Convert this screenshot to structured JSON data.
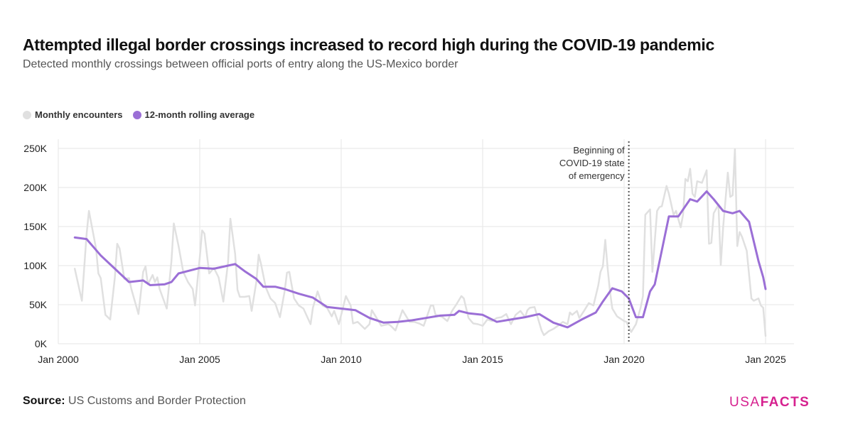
{
  "title": "Attempted illegal border crossings increased to record high during the COVID-19 pandemic",
  "subtitle": "Detected monthly crossings between official ports of entry along the US-Mexico border",
  "source_label": "Source:",
  "source_text": "US Customs and Border Protection",
  "logo": {
    "usa": "USA",
    "facts": "FACTS",
    "color": "#d6218f"
  },
  "chart_data": {
    "type": "line",
    "title": "",
    "xlabel": "",
    "ylabel": "",
    "x_ticks": [
      "Jan 2000",
      "Jan 2005",
      "Jan 2010",
      "Jan 2015",
      "Jan 2020",
      "Jan 2025"
    ],
    "y_ticks": [
      "0K",
      "50K",
      "100K",
      "150K",
      "200K",
      "250K"
    ],
    "xlim": [
      "2000-01",
      "2025-12"
    ],
    "ylim": [
      0,
      250000
    ],
    "grid": true,
    "legend_placement": "top-left",
    "annotation": {
      "date": "2020-03",
      "lines": [
        "Beginning of",
        "COVID-19 state",
        "of emergency"
      ]
    },
    "series": [
      {
        "name": "Monthly encounters",
        "color": "#e0e0e0",
        "unit": "thousands",
        "points": [
          [
            "2000-08",
            96
          ],
          [
            "2000-11",
            55
          ],
          [
            "2001-01",
            140
          ],
          [
            "2001-02",
            170
          ],
          [
            "2001-05",
            122
          ],
          [
            "2001-06",
            90
          ],
          [
            "2001-07",
            84
          ],
          [
            "2001-09",
            37
          ],
          [
            "2001-11",
            31
          ],
          [
            "2002-01",
            85
          ],
          [
            "2002-02",
            128
          ],
          [
            "2002-03",
            122
          ],
          [
            "2002-05",
            83
          ],
          [
            "2002-07",
            84
          ],
          [
            "2002-08",
            70
          ],
          [
            "2002-11",
            38
          ],
          [
            "2003-01",
            92
          ],
          [
            "2003-02",
            99
          ],
          [
            "2003-03",
            76
          ],
          [
            "2003-05",
            88
          ],
          [
            "2003-06",
            79
          ],
          [
            "2003-07",
            85
          ],
          [
            "2003-08",
            70
          ],
          [
            "2003-11",
            45
          ],
          [
            "2004-01",
            106
          ],
          [
            "2004-02",
            154
          ],
          [
            "2004-04",
            125
          ],
          [
            "2004-06",
            92
          ],
          [
            "2004-08",
            79
          ],
          [
            "2004-10",
            70
          ],
          [
            "2004-11",
            49
          ],
          [
            "2005-01",
            110
          ],
          [
            "2005-02",
            145
          ],
          [
            "2005-03",
            141
          ],
          [
            "2005-05",
            90
          ],
          [
            "2005-07",
            97
          ],
          [
            "2005-09",
            85
          ],
          [
            "2005-11",
            54
          ],
          [
            "2006-01",
            104
          ],
          [
            "2006-02",
            160
          ],
          [
            "2006-04",
            115
          ],
          [
            "2006-05",
            69
          ],
          [
            "2006-06",
            60
          ],
          [
            "2006-08",
            60
          ],
          [
            "2006-10",
            61
          ],
          [
            "2006-11",
            42
          ],
          [
            "2007-01",
            79
          ],
          [
            "2007-02",
            114
          ],
          [
            "2007-03",
            102
          ],
          [
            "2007-05",
            72
          ],
          [
            "2007-07",
            58
          ],
          [
            "2007-09",
            52
          ],
          [
            "2007-11",
            34
          ],
          [
            "2008-01",
            67
          ],
          [
            "2008-02",
            91
          ],
          [
            "2008-03",
            92
          ],
          [
            "2008-05",
            58
          ],
          [
            "2008-07",
            49
          ],
          [
            "2008-09",
            45
          ],
          [
            "2008-12",
            25
          ],
          [
            "2009-01",
            46
          ],
          [
            "2009-03",
            67
          ],
          [
            "2009-05",
            49
          ],
          [
            "2009-07",
            46
          ],
          [
            "2009-09",
            35
          ],
          [
            "2009-10",
            42
          ],
          [
            "2009-12",
            25
          ],
          [
            "2010-03",
            61
          ],
          [
            "2010-05",
            49
          ],
          [
            "2010-06",
            26
          ],
          [
            "2010-08",
            28
          ],
          [
            "2010-09",
            25
          ],
          [
            "2010-11",
            19
          ],
          [
            "2011-01",
            25
          ],
          [
            "2011-02",
            43
          ],
          [
            "2011-04",
            33
          ],
          [
            "2011-06",
            23
          ],
          [
            "2011-09",
            25
          ],
          [
            "2011-10",
            23
          ],
          [
            "2011-12",
            17
          ],
          [
            "2012-03",
            43
          ],
          [
            "2012-04",
            38
          ],
          [
            "2012-06",
            28
          ],
          [
            "2012-08",
            28
          ],
          [
            "2012-10",
            26
          ],
          [
            "2012-12",
            23
          ],
          [
            "2013-03",
            49
          ],
          [
            "2013-04",
            49
          ],
          [
            "2013-05",
            37
          ],
          [
            "2013-08",
            34
          ],
          [
            "2013-10",
            29
          ],
          [
            "2013-12",
            42
          ],
          [
            "2014-02",
            51
          ],
          [
            "2014-04",
            61
          ],
          [
            "2014-05",
            58
          ],
          [
            "2014-07",
            33
          ],
          [
            "2014-09",
            26
          ],
          [
            "2014-11",
            25
          ],
          [
            "2015-01",
            23
          ],
          [
            "2015-03",
            31
          ],
          [
            "2015-05",
            29
          ],
          [
            "2015-07",
            33
          ],
          [
            "2015-09",
            34
          ],
          [
            "2015-11",
            38
          ],
          [
            "2016-01",
            25
          ],
          [
            "2016-03",
            37
          ],
          [
            "2016-05",
            42
          ],
          [
            "2016-07",
            34
          ],
          [
            "2016-08",
            43
          ],
          [
            "2016-09",
            46
          ],
          [
            "2016-11",
            47
          ],
          [
            "2016-12",
            37
          ],
          [
            "2017-02",
            17
          ],
          [
            "2017-03",
            11
          ],
          [
            "2017-05",
            16
          ],
          [
            "2017-07",
            19
          ],
          [
            "2017-09",
            23
          ],
          [
            "2017-11",
            28
          ],
          [
            "2018-01",
            25
          ],
          [
            "2018-02",
            40
          ],
          [
            "2018-03",
            37
          ],
          [
            "2018-05",
            42
          ],
          [
            "2018-06",
            33
          ],
          [
            "2018-08",
            42
          ],
          [
            "2018-10",
            52
          ],
          [
            "2018-12",
            49
          ],
          [
            "2019-02",
            74
          ],
          [
            "2019-03",
            92
          ],
          [
            "2019-04",
            99
          ],
          [
            "2019-05",
            133
          ],
          [
            "2019-06",
            97
          ],
          [
            "2019-07",
            67
          ],
          [
            "2019-08",
            45
          ],
          [
            "2019-10",
            35
          ],
          [
            "2019-11",
            33
          ],
          [
            "2020-01",
            29
          ],
          [
            "2020-02",
            28
          ],
          [
            "2020-04",
            15
          ],
          [
            "2020-06",
            25
          ],
          [
            "2020-08",
            46
          ],
          [
            "2020-09",
            61
          ],
          [
            "2020-10",
            165
          ],
          [
            "2020-12",
            172
          ],
          [
            "2021-01",
            92
          ],
          [
            "2021-03",
            170
          ],
          [
            "2021-04",
            175
          ],
          [
            "2021-05",
            176
          ],
          [
            "2021-07",
            202
          ],
          [
            "2021-08",
            192
          ],
          [
            "2021-10",
            165
          ],
          [
            "2021-11",
            170
          ],
          [
            "2022-01",
            149
          ],
          [
            "2022-02",
            165
          ],
          [
            "2022-03",
            211
          ],
          [
            "2022-04",
            208
          ],
          [
            "2022-05",
            224
          ],
          [
            "2022-06",
            192
          ],
          [
            "2022-07",
            188
          ],
          [
            "2022-08",
            208
          ],
          [
            "2022-10",
            206
          ],
          [
            "2022-12",
            222
          ],
          [
            "2023-01",
            128
          ],
          [
            "2023-02",
            129
          ],
          [
            "2023-03",
            167
          ],
          [
            "2023-05",
            178
          ],
          [
            "2023-06",
            101
          ],
          [
            "2023-07",
            149
          ],
          [
            "2023-09",
            219
          ],
          [
            "2023-10",
            188
          ],
          [
            "2023-11",
            190
          ],
          [
            "2023-12",
            249
          ],
          [
            "2024-01",
            125
          ],
          [
            "2024-02",
            143
          ],
          [
            "2024-03",
            137
          ],
          [
            "2024-05",
            119
          ],
          [
            "2024-07",
            58
          ],
          [
            "2024-08",
            55
          ],
          [
            "2024-10",
            58
          ],
          [
            "2024-11",
            49
          ],
          [
            "2024-12",
            46
          ],
          [
            "2025-01",
            10
          ]
        ]
      },
      {
        "name": "12-month rolling average",
        "color": "#9b6fd6",
        "unit": "thousands",
        "points": [
          [
            "2000-08",
            136
          ],
          [
            "2001-01",
            134
          ],
          [
            "2001-07",
            113
          ],
          [
            "2002-01",
            96
          ],
          [
            "2002-07",
            79
          ],
          [
            "2003-01",
            81
          ],
          [
            "2003-04",
            75
          ],
          [
            "2003-10",
            76
          ],
          [
            "2004-01",
            79
          ],
          [
            "2004-04",
            90
          ],
          [
            "2005-01",
            97
          ],
          [
            "2005-07",
            96
          ],
          [
            "2006-01",
            100
          ],
          [
            "2006-04",
            102
          ],
          [
            "2006-08",
            93
          ],
          [
            "2007-01",
            83
          ],
          [
            "2007-04",
            73
          ],
          [
            "2007-09",
            73
          ],
          [
            "2008-01",
            70
          ],
          [
            "2008-07",
            64
          ],
          [
            "2009-01",
            59
          ],
          [
            "2009-07",
            47
          ],
          [
            "2010-01",
            45
          ],
          [
            "2010-07",
            43
          ],
          [
            "2011-01",
            33
          ],
          [
            "2011-07",
            27
          ],
          [
            "2012-01",
            28
          ],
          [
            "2012-07",
            30
          ],
          [
            "2013-01",
            33
          ],
          [
            "2013-07",
            36
          ],
          [
            "2014-01",
            37
          ],
          [
            "2014-03",
            42
          ],
          [
            "2014-07",
            39
          ],
          [
            "2015-01",
            37
          ],
          [
            "2015-07",
            28
          ],
          [
            "2016-01",
            31
          ],
          [
            "2016-07",
            34
          ],
          [
            "2017-01",
            38
          ],
          [
            "2017-07",
            27
          ],
          [
            "2018-01",
            21
          ],
          [
            "2018-07",
            31
          ],
          [
            "2019-01",
            40
          ],
          [
            "2019-04",
            54
          ],
          [
            "2019-08",
            71
          ],
          [
            "2019-12",
            67
          ],
          [
            "2020-03",
            58
          ],
          [
            "2020-06",
            34
          ],
          [
            "2020-09",
            34
          ],
          [
            "2020-12",
            67
          ],
          [
            "2021-02",
            76
          ],
          [
            "2021-08",
            163
          ],
          [
            "2021-12",
            163
          ],
          [
            "2022-05",
            185
          ],
          [
            "2022-08",
            182
          ],
          [
            "2022-12",
            195
          ],
          [
            "2023-03",
            185
          ],
          [
            "2023-07",
            170
          ],
          [
            "2023-11",
            167
          ],
          [
            "2024-02",
            170
          ],
          [
            "2024-06",
            156
          ],
          [
            "2024-10",
            106
          ],
          [
            "2024-12",
            85
          ],
          [
            "2025-01",
            70
          ]
        ]
      }
    ]
  }
}
